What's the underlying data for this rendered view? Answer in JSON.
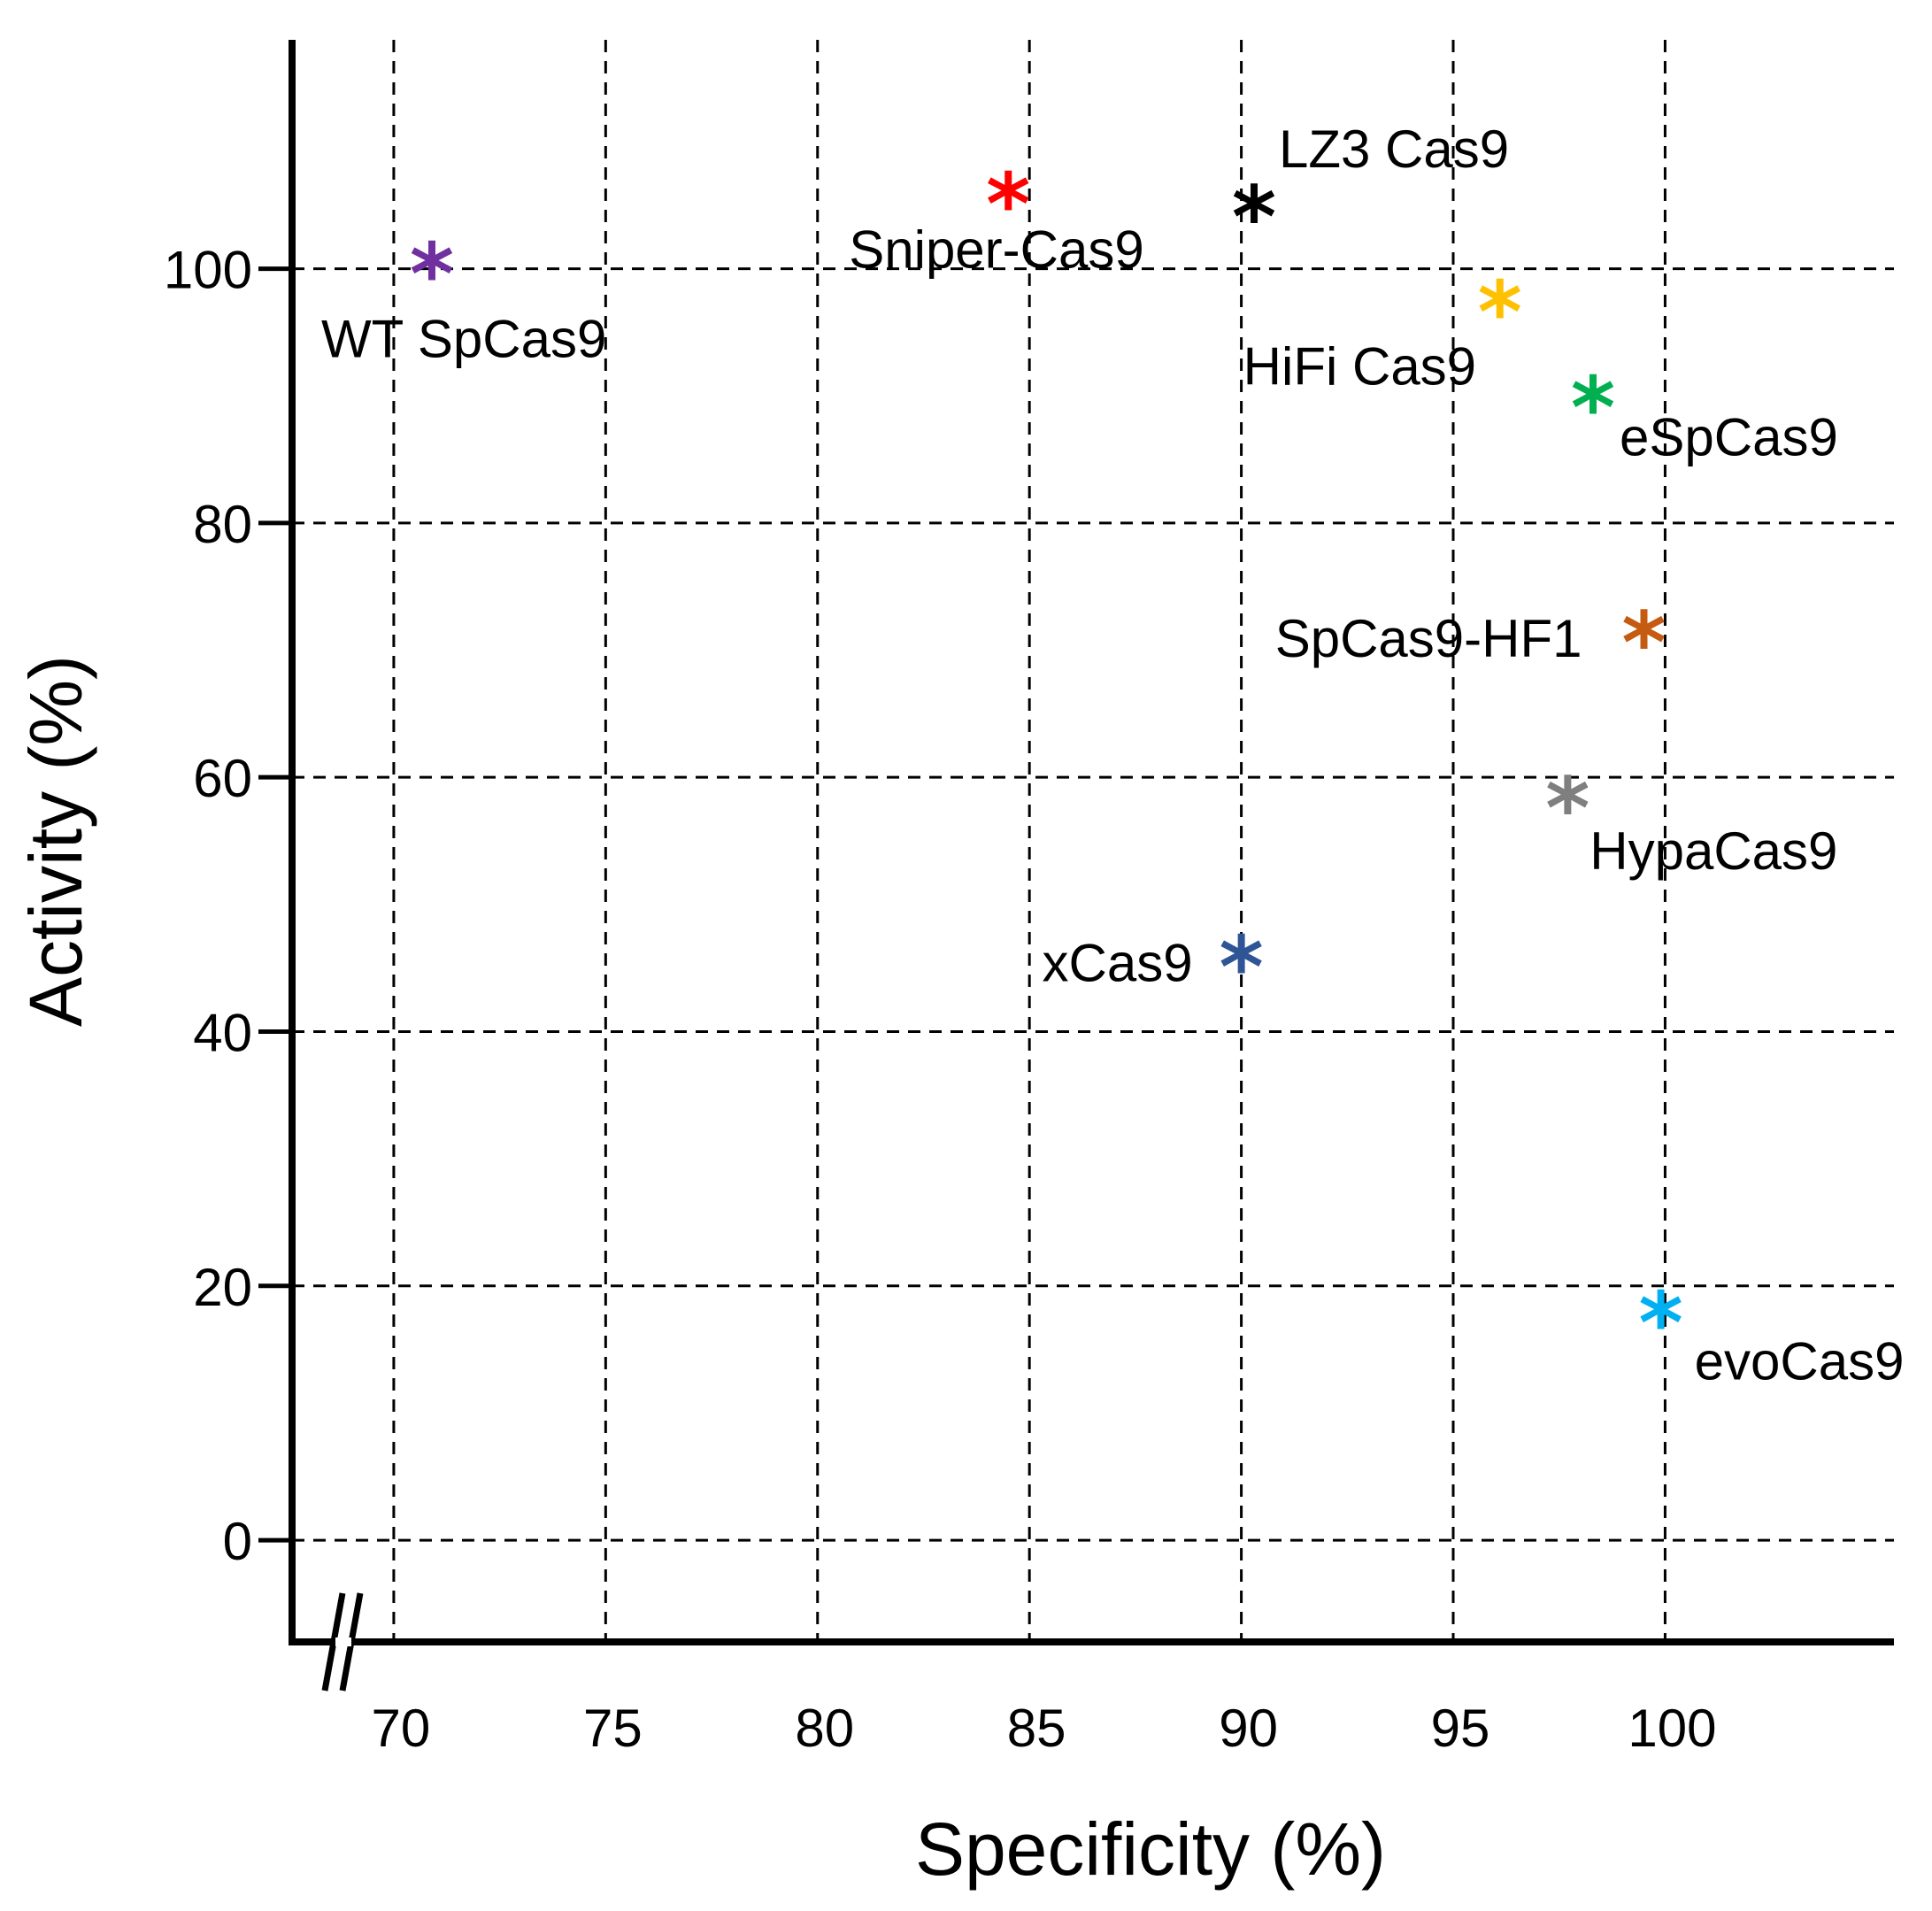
{
  "chart_data": {
    "type": "scatter",
    "title": "",
    "xlabel": "Specificity (%)",
    "ylabel": "Activity (%)",
    "xlim": [
      67.6,
      105.4
    ],
    "ylim": [
      -8,
      118
    ],
    "x_ticks": [
      70,
      75,
      80,
      85,
      90,
      95,
      100
    ],
    "y_ticks": [
      0,
      20,
      40,
      60,
      80,
      100
    ],
    "grid": true,
    "axis_break": "x",
    "marker": "*",
    "points": [
      {
        "name": "WT SpCas9",
        "x": 70.9,
        "y": 100,
        "color": "#7030A0",
        "label_anchor": "below-left"
      },
      {
        "name": "Sniper-Cas9",
        "x": 84.5,
        "y": 105.5,
        "color": "#FF0000",
        "label_anchor": "below"
      },
      {
        "name": "LZ3 Cas9",
        "x": 90.3,
        "y": 104.5,
        "color": "#000000",
        "label_anchor": "above-right"
      },
      {
        "name": "HiFi Cas9",
        "x": 96.1,
        "y": 97,
        "color": "#FFC000",
        "label_anchor": "below-left"
      },
      {
        "name": "eSpCas9",
        "x": 98.3,
        "y": 89.5,
        "color": "#00B050",
        "label_anchor": "below-right"
      },
      {
        "name": "SpCas9-HF1",
        "x": 99.5,
        "y": 71,
        "color": "#C55A11",
        "label_anchor": "left"
      },
      {
        "name": "HypaCas9",
        "x": 97.7,
        "y": 58,
        "color": "#7F7F7F",
        "label_anchor": "below-right"
      },
      {
        "name": "xCas9",
        "x": 90,
        "y": 45.5,
        "color": "#2F5597",
        "label_anchor": "left"
      },
      {
        "name": "evoCas9",
        "x": 99.9,
        "y": 17.5,
        "color": "#00B0F0",
        "label_anchor": "below-right"
      }
    ]
  }
}
